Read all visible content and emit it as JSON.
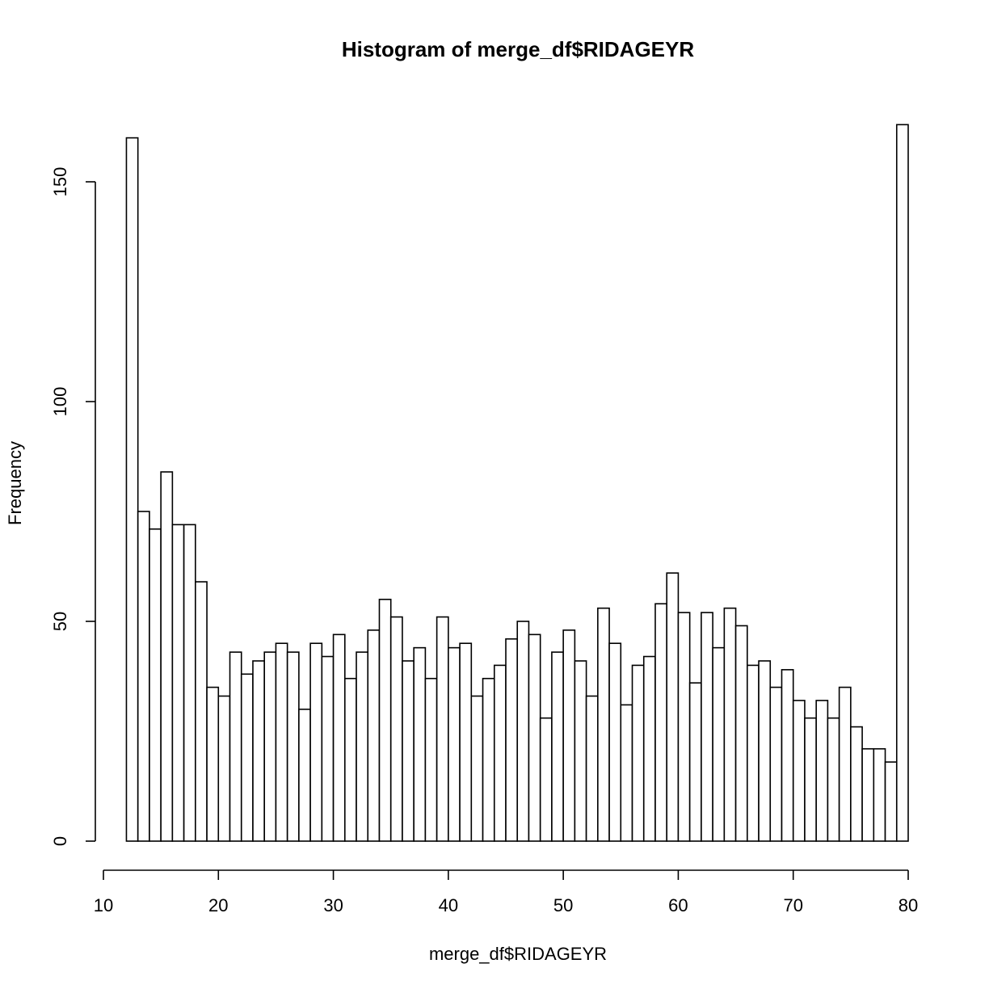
{
  "chart_data": {
    "type": "bar",
    "title": "Histogram of merge_df$RIDAGEYR",
    "xlabel": "merge_df$RIDAGEYR",
    "ylabel": "Frequency",
    "xlim": [
      10,
      80
    ],
    "ylim": [
      0,
      165
    ],
    "x_ticks": [
      10,
      20,
      30,
      40,
      50,
      60,
      70,
      80
    ],
    "y_ticks": [
      0,
      50,
      100,
      150
    ],
    "grid": false,
    "bin_edges": [
      12,
      13,
      14,
      15,
      16,
      17,
      18,
      19,
      20,
      21,
      22,
      23,
      24,
      25,
      26,
      27,
      28,
      29,
      30,
      31,
      32,
      33,
      34,
      35,
      36,
      37,
      38,
      39,
      40,
      41,
      42,
      43,
      44,
      45,
      46,
      47,
      48,
      49,
      50,
      51,
      52,
      53,
      54,
      55,
      56,
      57,
      58,
      59,
      60,
      61,
      62,
      63,
      64,
      65,
      66,
      67,
      68,
      69,
      70,
      71,
      72,
      73,
      74,
      75,
      76,
      77,
      78,
      79,
      80
    ],
    "values": [
      160,
      75,
      71,
      84,
      72,
      72,
      59,
      35,
      33,
      43,
      38,
      41,
      43,
      45,
      43,
      30,
      45,
      42,
      47,
      37,
      43,
      48,
      55,
      51,
      41,
      44,
      37,
      51,
      44,
      45,
      33,
      37,
      40,
      46,
      50,
      47,
      28,
      43,
      48,
      41,
      33,
      53,
      45,
      31,
      40,
      42,
      54,
      61,
      52,
      36,
      52,
      44,
      53,
      49,
      40,
      41,
      35,
      39,
      32,
      28,
      32,
      28,
      35,
      26,
      21,
      21,
      18,
      163
    ]
  }
}
